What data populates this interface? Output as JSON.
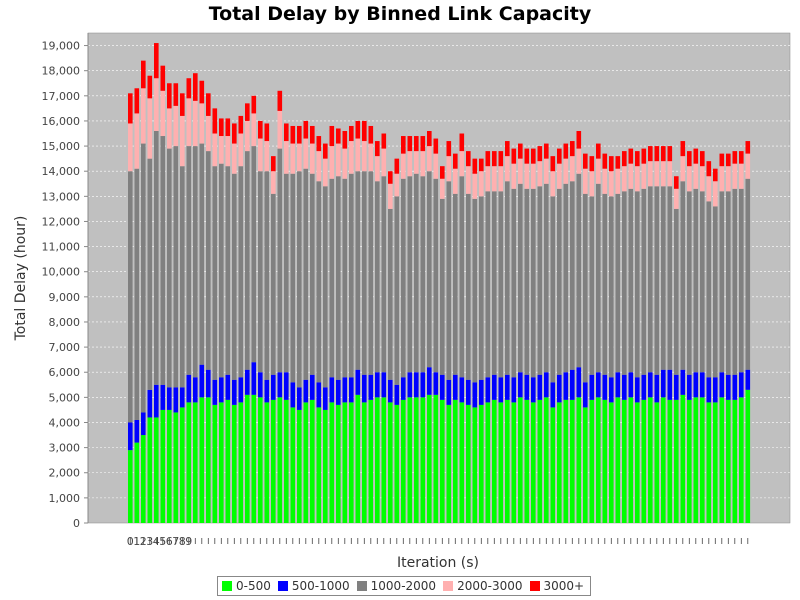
{
  "chart_data": {
    "type": "bar",
    "stacked": true,
    "title": "Total Delay by Binned Link Capacity",
    "xlabel": "Iteration (s)",
    "ylabel": "Total Delay (hour)",
    "ylim": [
      0,
      19500
    ],
    "yticks": [
      "0",
      "1,000",
      "2,000",
      "3,000",
      "4,000",
      "5,000",
      "6,000",
      "7,000",
      "8,000",
      "9,000",
      "10,000",
      "11,000",
      "12,000",
      "13,000",
      "14,000",
      "15,000",
      "16,000",
      "17,000",
      "18,000",
      "19,000"
    ],
    "xtick_labels": [
      "0",
      "1",
      "2",
      "3",
      "4",
      "5",
      "6",
      "7",
      "8",
      "9"
    ],
    "grid": true,
    "legend_position": "bottom",
    "background": "#c0c0c0",
    "series": [
      {
        "name": "0-500",
        "color": "#00ff00",
        "values": [
          2900,
          3200,
          3500,
          4200,
          4200,
          4500,
          4500,
          4400,
          4600,
          4800,
          4800,
          5000,
          5000,
          4700,
          4800,
          4900,
          4700,
          4800,
          5100,
          5100,
          5000,
          4800,
          4900,
          5000,
          4900,
          4600,
          4500,
          4800,
          4900,
          4600,
          4500,
          4800,
          4700,
          4800,
          4800,
          5100,
          4800,
          4900,
          5000,
          5000,
          4800,
          4700,
          4900,
          5000,
          5000,
          5000,
          5100,
          5100,
          4900,
          4700,
          4900,
          4800,
          4700,
          4600,
          4700,
          4800,
          4900,
          4800,
          4900,
          4800,
          5000,
          4900,
          4800,
          4900,
          5000,
          4600,
          4800,
          4900,
          4900,
          5000,
          4600,
          4900,
          5000,
          4900,
          4800,
          5000,
          4900,
          5000,
          4800,
          4900,
          5000,
          4800,
          5000,
          4900,
          4900,
          5100,
          4900,
          5000,
          5000,
          4800,
          4800,
          5000,
          4900,
          4900,
          5000,
          5300
        ]
      },
      {
        "name": "500-1000",
        "color": "#0000ff",
        "values": [
          1100,
          900,
          900,
          1100,
          1300,
          1000,
          900,
          1000,
          800,
          1100,
          1000,
          1300,
          1100,
          1000,
          1000,
          1000,
          1000,
          1000,
          1000,
          1300,
          1000,
          900,
          1000,
          1000,
          1100,
          1000,
          900,
          900,
          1000,
          1000,
          900,
          1000,
          1000,
          1000,
          1000,
          1000,
          1100,
          1000,
          1000,
          1000,
          900,
          800,
          900,
          1000,
          1000,
          1000,
          1100,
          900,
          1000,
          1000,
          1000,
          1000,
          1000,
          1000,
          1000,
          1000,
          1000,
          1000,
          1000,
          1000,
          1000,
          1000,
          1000,
          1000,
          1000,
          1000,
          1100,
          1100,
          1200,
          1200,
          1000,
          1000,
          1000,
          1000,
          1000,
          1000,
          1000,
          1000,
          1000,
          1000,
          1000,
          1100,
          1100,
          1200,
          1000,
          1000,
          1000,
          1000,
          1000,
          1000,
          1000,
          1000,
          1000,
          1000,
          1000,
          800
        ]
      },
      {
        "name": "1000-2000",
        "color": "#808080",
        "values": [
          10000,
          10000,
          10700,
          9200,
          10100,
          9900,
          9500,
          9600,
          8800,
          9100,
          9200,
          8800,
          8700,
          8500,
          8500,
          8300,
          8200,
          8400,
          8700,
          8600,
          8000,
          8300,
          7200,
          8900,
          7900,
          8300,
          8600,
          8400,
          8000,
          8000,
          8000,
          7900,
          8100,
          7900,
          8100,
          7900,
          8100,
          8100,
          7600,
          7800,
          6800,
          7500,
          7900,
          7800,
          7900,
          7800,
          7800,
          7700,
          7000,
          7900,
          7200,
          8000,
          7400,
          7300,
          7300,
          7400,
          7300,
          7400,
          7700,
          7500,
          7500,
          7400,
          7500,
          7500,
          7500,
          7400,
          7400,
          7500,
          7500,
          7700,
          7500,
          7100,
          7500,
          7200,
          7200,
          7100,
          7300,
          7300,
          7400,
          7400,
          7400,
          7500,
          7300,
          7300,
          6600,
          7500,
          7300,
          7300,
          7200,
          7000,
          6800,
          7200,
          7300,
          7400,
          7300,
          7600
        ]
      },
      {
        "name": "2000-3000",
        "color": "#ffb0b0",
        "values": [
          1900,
          2200,
          2200,
          2400,
          2100,
          1800,
          1600,
          1600,
          2000,
          1900,
          1800,
          1600,
          1400,
          1300,
          1100,
          1200,
          1200,
          1300,
          1200,
          1300,
          1300,
          1200,
          900,
          1500,
          1300,
          1200,
          1100,
          1200,
          1200,
          1200,
          1100,
          1300,
          1300,
          1200,
          1300,
          1300,
          1200,
          1100,
          1000,
          1100,
          1000,
          900,
          1000,
          1000,
          900,
          1000,
          1000,
          1000,
          800,
          1000,
          1000,
          1000,
          1100,
          1000,
          1000,
          1000,
          1000,
          1000,
          1000,
          1000,
          1000,
          1000,
          1000,
          1000,
          1000,
          1000,
          1000,
          1000,
          1000,
          1000,
          1000,
          1000,
          1000,
          1000,
          1000,
          1000,
          1000,
          1000,
          1000,
          1000,
          1000,
          1000,
          1000,
          1000,
          800,
          1000,
          1000,
          1000,
          1000,
          1000,
          1000,
          1000,
          1000,
          1000,
          1000,
          1000
        ]
      },
      {
        "name": "3000+",
        "color": "#ff0000",
        "values": [
          1200,
          1000,
          1100,
          900,
          1400,
          1000,
          1000,
          900,
          900,
          800,
          1100,
          900,
          900,
          1000,
          700,
          700,
          800,
          700,
          700,
          700,
          700,
          700,
          600,
          800,
          700,
          700,
          700,
          700,
          700,
          600,
          600,
          800,
          600,
          700,
          600,
          700,
          800,
          700,
          600,
          600,
          500,
          600,
          700,
          600,
          600,
          600,
          600,
          600,
          500,
          600,
          600,
          700,
          600,
          600,
          500,
          600,
          600,
          600,
          600,
          600,
          600,
          600,
          600,
          600,
          600,
          600,
          600,
          600,
          600,
          700,
          600,
          600,
          600,
          600,
          600,
          500,
          600,
          600,
          600,
          600,
          600,
          600,
          600,
          600,
          500,
          600,
          600,
          600,
          600,
          600,
          500,
          500,
          500,
          500,
          500,
          500
        ]
      }
    ]
  }
}
